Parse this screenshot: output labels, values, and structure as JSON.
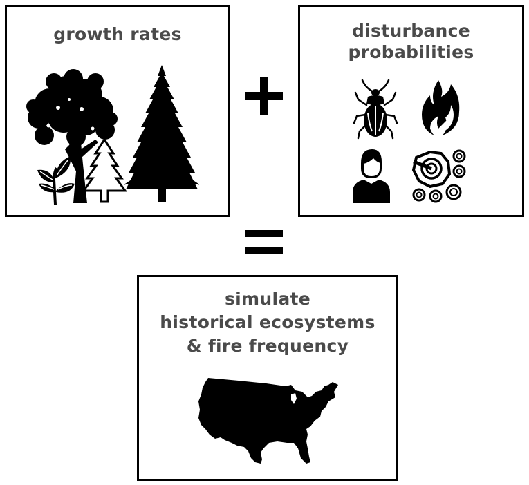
{
  "boxes": {
    "growth": {
      "title": "growth rates",
      "icons": [
        "deciduous-tree-icon",
        "conifer-tree-icon",
        "conifer-outline-icon",
        "seedling-icon"
      ]
    },
    "disturbance": {
      "title_line1": "disturbance",
      "title_line2": "probabilities",
      "icons": [
        "beetle-icon",
        "fire-icon",
        "person-icon",
        "tree-rings-icon"
      ]
    },
    "simulate": {
      "title_line1": "simulate",
      "title_line2": "historical ecosystems",
      "title_line3": "& fire frequency",
      "icons": [
        "usa-map-icon"
      ]
    }
  },
  "operators": {
    "plus": "plus-icon",
    "equals": "equals-icon"
  },
  "colors": {
    "title_text": "#4a4a4a",
    "icon_fill": "#000000",
    "border": "#000000"
  }
}
